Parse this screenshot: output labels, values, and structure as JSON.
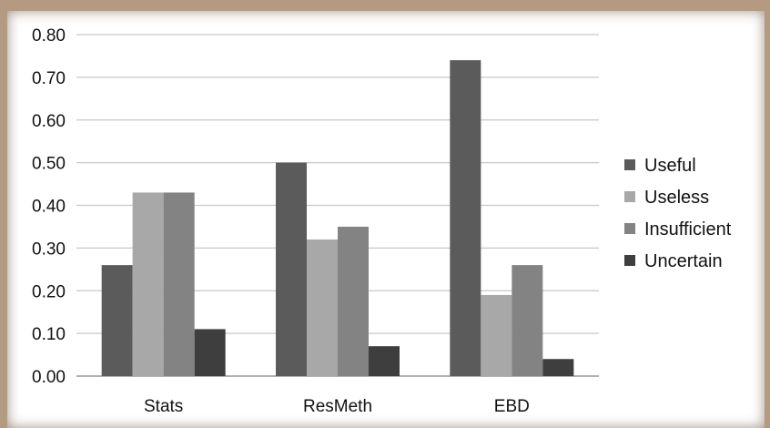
{
  "chart_data": {
    "type": "bar",
    "categories": [
      "Stats",
      "ResMeth",
      "EBD"
    ],
    "series": [
      {
        "name": "Useful",
        "color": "#5b5b5b",
        "values": [
          0.26,
          0.5,
          0.74
        ]
      },
      {
        "name": "Useless",
        "color": "#a8a8a8",
        "values": [
          0.43,
          0.32,
          0.19
        ]
      },
      {
        "name": "Insufficient",
        "color": "#838383",
        "values": [
          0.43,
          0.35,
          0.26
        ]
      },
      {
        "name": "Uncertain",
        "color": "#3e3e3e",
        "values": [
          0.11,
          0.07,
          0.04
        ]
      }
    ],
    "yticks": [
      "0.00",
      "0.10",
      "0.20",
      "0.30",
      "0.40",
      "0.50",
      "0.60",
      "0.70",
      "0.80"
    ],
    "ylim": [
      0,
      0.8
    ],
    "grid": true,
    "legend_position": "right"
  }
}
